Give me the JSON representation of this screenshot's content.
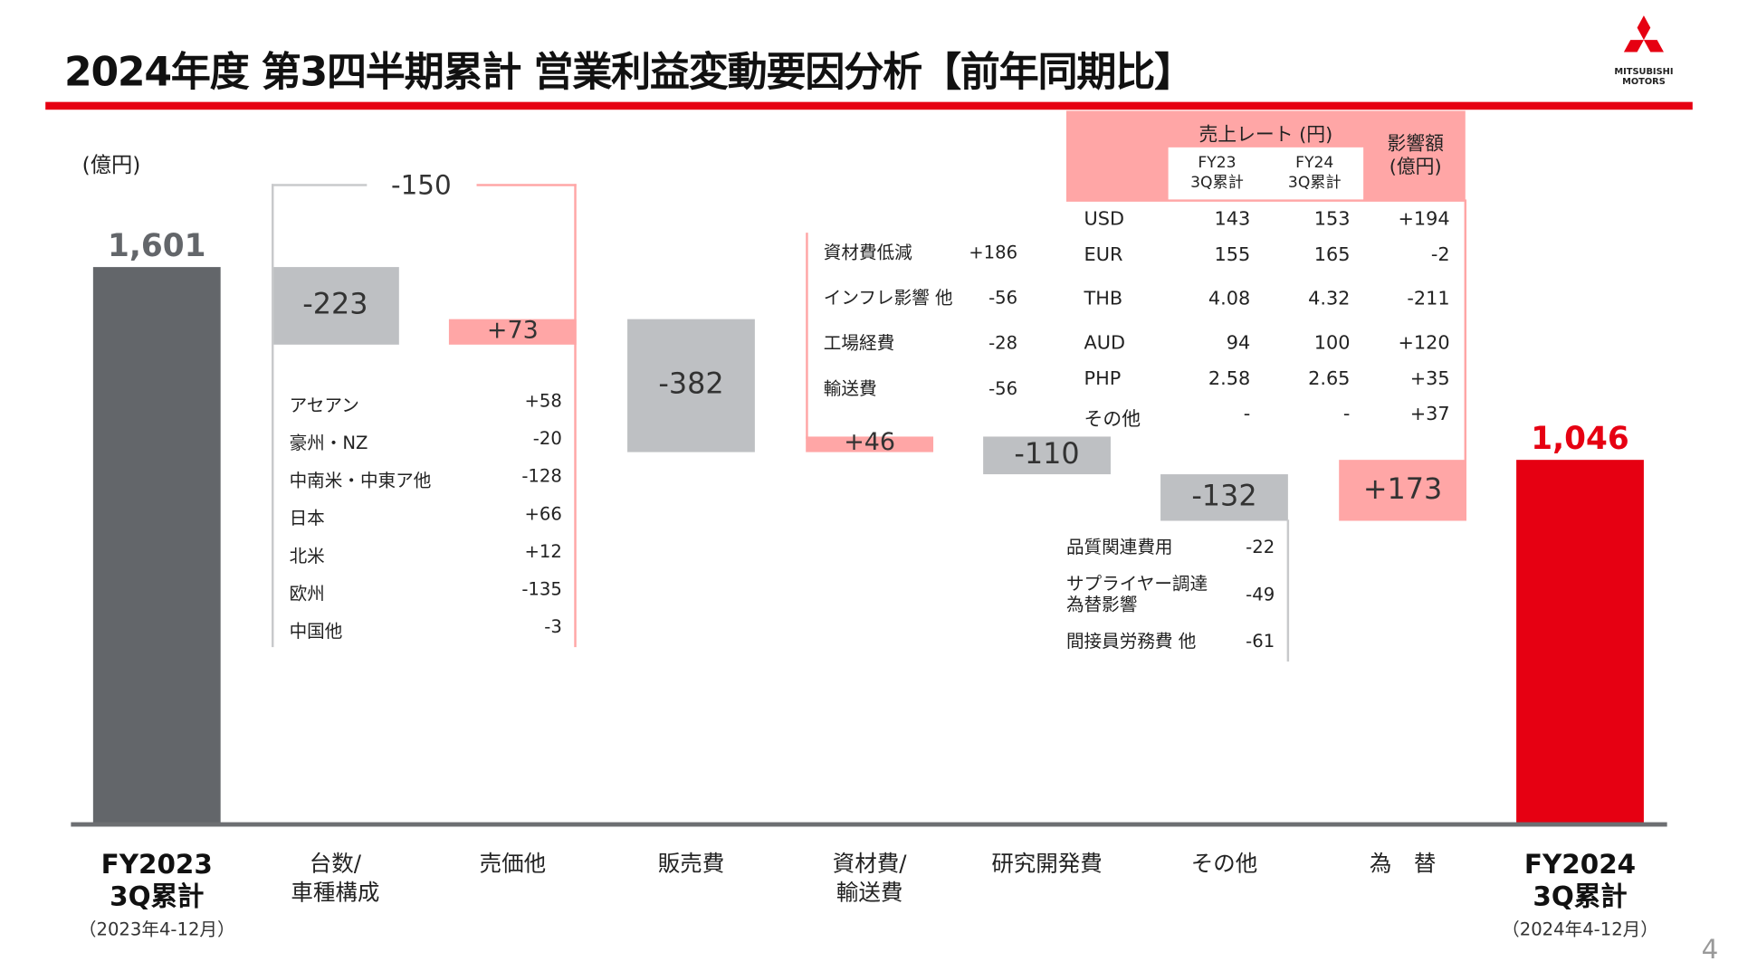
{
  "title": "2024年度 第3四半期累計 営業利益変動要因分析【前年同期比】",
  "logo_text": "MITSUBISHI MOTORS",
  "page_number": "4",
  "colors": {
    "accent": "#e60012",
    "start_bar": "#63666a",
    "neg_bar": "#bec0c3",
    "pos_bar": "#ffa6a6",
    "end_bar": "#e60012"
  },
  "chart_data": {
    "type": "waterfall",
    "unit_label": "(億円)",
    "categories": [
      {
        "lines": [
          "FY2023",
          "3Q累計"
        ],
        "sub": "（2023年4-12月）"
      },
      {
        "lines": [
          "台数/",
          "車種構成"
        ]
      },
      {
        "lines": [
          "売価他"
        ]
      },
      {
        "lines": [
          "販売費"
        ]
      },
      {
        "lines": [
          "資材費/",
          "輸送費"
        ]
      },
      {
        "lines": [
          "研究開発費"
        ]
      },
      {
        "lines": [
          "その他"
        ]
      },
      {
        "lines": [
          "為　替"
        ]
      },
      {
        "lines": [
          "FY2024",
          "3Q累計"
        ],
        "sub": "（2024年4-12月）"
      }
    ],
    "values": [
      1601,
      -223,
      73,
      -382,
      46,
      -110,
      -132,
      173,
      1046
    ],
    "labels": [
      "1,601",
      "-223",
      "+73",
      "-382",
      "+46",
      "-110",
      "-132",
      "+173",
      "1,046"
    ],
    "bar_kinds": [
      "total",
      "delta",
      "delta",
      "delta",
      "delta",
      "delta",
      "delta",
      "delta",
      "total"
    ],
    "combined_label": "-150",
    "breakdowns": {
      "volume_price": [
        {
          "label": "アセアン",
          "value": "+58"
        },
        {
          "label": "豪州・NZ",
          "value": "-20"
        },
        {
          "label": "中南米・中東ア他",
          "value": "-128"
        },
        {
          "label": "日本",
          "value": "+66"
        },
        {
          "label": "北米",
          "value": "+12"
        },
        {
          "label": "欧州",
          "value": "-135"
        },
        {
          "label": "中国他",
          "value": "-3"
        }
      ],
      "material": [
        {
          "label": "資材費低減",
          "value": "+186"
        },
        {
          "label": "インフレ影響 他",
          "value": "-56"
        },
        {
          "label": "工場経費",
          "value": "-28"
        },
        {
          "label": "輸送費",
          "value": "-56"
        }
      ],
      "other": [
        {
          "label": "品質関連費用",
          "value": "-22"
        },
        {
          "label": "サプライヤー調達\n為替影響",
          "value": "-49"
        },
        {
          "label": "間接員労務費 他",
          "value": "-61"
        }
      ]
    },
    "fx_table": {
      "header_rate": "売上レート (円)",
      "header_fy23": "FY23\n3Q累計",
      "header_fy24": "FY24\n3Q累計",
      "header_impact": "影響額\n(億円)",
      "rows": [
        {
          "cur": "USD",
          "fy23": "143",
          "fy24": "153",
          "impact": "+194"
        },
        {
          "cur": "EUR",
          "fy23": "155",
          "fy24": "165",
          "impact": "-2"
        },
        {
          "cur": "THB",
          "fy23": "4.08",
          "fy24": "4.32",
          "impact": "-211"
        },
        {
          "cur": "AUD",
          "fy23": "94",
          "fy24": "100",
          "impact": "+120"
        },
        {
          "cur": "PHP",
          "fy23": "2.58",
          "fy24": "2.65",
          "impact": "+35"
        },
        {
          "cur": "その他",
          "fy23": "-",
          "fy24": "-",
          "impact": "+37"
        }
      ]
    }
  }
}
